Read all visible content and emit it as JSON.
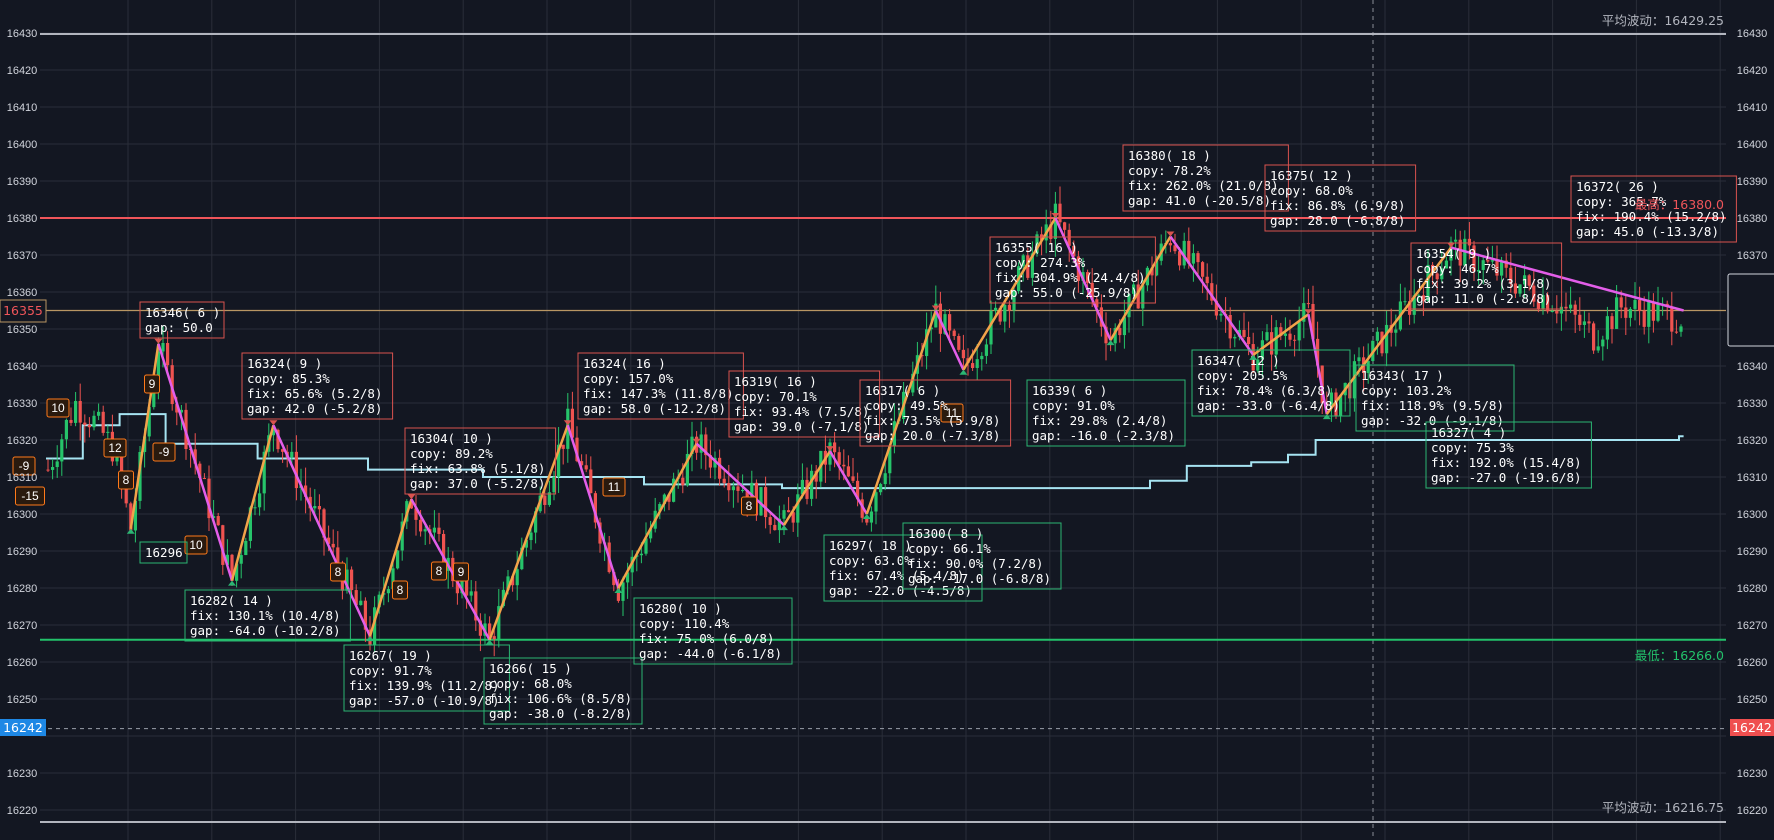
{
  "colors": {
    "background": "#131722",
    "grid": "#2a2e39",
    "up": "#26c46a",
    "down": "#ef5350",
    "swing_up": "#f2a34a",
    "swing_down": "#e35ee9",
    "avg_line": "#a6e4f2",
    "resistance": "#f0555a",
    "support": "#23c26b",
    "neutral": "#b89663",
    "band": "#b2b5be",
    "current_price": "#1e88e5",
    "box_high": "#d9534f",
    "box_low": "#2bb673",
    "badge": "#ff7a1a"
  },
  "axis": {
    "y_ticks": [
      16220,
      16230,
      16240,
      16250,
      16260,
      16270,
      16280,
      16290,
      16300,
      16310,
      16320,
      16330,
      16340,
      16350,
      16360,
      16370,
      16380,
      16390,
      16400,
      16410,
      16420,
      16430
    ],
    "y_range": [
      16216.75,
      16429.25
    ]
  },
  "levels": {
    "avg_high_label": "平均波动：16429.25",
    "avg_low_label": "平均波动：16216.75",
    "low_label": "最低：16266.0",
    "high_label": "最高：16380.0",
    "left_tag": "16355",
    "current_left": "16242",
    "current_right": "16242"
  },
  "chart_data": {
    "type": "candlestick",
    "title": "",
    "ylim": [
      16216.75,
      16429.25
    ],
    "avg_wave_high": 16429.25,
    "avg_wave_low": 16216.75,
    "highest": 16380.0,
    "lowest": 16266.0,
    "reference_level": 16355,
    "current_price": 16242,
    "swing_points": [
      {
        "price": 16296,
        "type": "low",
        "lines": [
          "16296"
        ]
      },
      {
        "price": 16346,
        "type": "high",
        "lines": [
          "16346( 6 )",
          "gap:  50.0"
        ]
      },
      {
        "price": 16282,
        "type": "low",
        "lines": [
          "16282( 14 )",
          "fix:  130.1% (10.4/8)",
          "gap:  -64.0 (-10.2/8)"
        ]
      },
      {
        "price": 16324,
        "type": "high",
        "lines": [
          "16324( 9 )",
          "copy: 85.3%",
          "fix:  65.6% (5.2/8)",
          "gap:  42.0 (-5.2/8)"
        ]
      },
      {
        "price": 16267,
        "type": "low",
        "lines": [
          "16267( 19 )",
          "copy: 91.7%",
          "fix:  139.9% (11.2/8)",
          "gap:  -57.0 (-10.9/8)"
        ]
      },
      {
        "price": 16304,
        "type": "high",
        "lines": [
          "16304( 10 )",
          "copy: 89.2%",
          "fix:  63.8% (5.1/8)",
          "gap:  37.0 (-5.2/8)"
        ]
      },
      {
        "price": 16266,
        "type": "low",
        "lines": [
          "16266( 15 )",
          "copy: 68.0%",
          "fix:  106.6% (8.5/8)",
          "gap:  -38.0 (-8.2/8)"
        ]
      },
      {
        "price": 16324,
        "type": "high",
        "lines": [
          "16324( 16 )",
          "copy: 157.0%",
          "fix:  147.3% (11.8/8)",
          "gap:  58.0 (-12.2/8)"
        ]
      },
      {
        "price": 16280,
        "type": "low",
        "lines": [
          "16280( 10 )",
          "copy: 110.4%",
          "fix:  75.0% (6.0/8)",
          "gap:  -44.0 (-6.1/8)"
        ]
      },
      {
        "price": 16319,
        "type": "high",
        "lines": [
          "16319( 16 )",
          "copy: 70.1%",
          "fix:  93.4% (7.5/8)",
          "gap:  39.0 (-7.1/8)"
        ]
      },
      {
        "price": 16297,
        "type": "low",
        "lines": [
          "16297( 18 )",
          "copy: 63.0%",
          "fix:  67.4% (5.4/8)",
          "gap:  -22.0 (-4.5/8)"
        ]
      },
      {
        "price": 16317,
        "type": "high",
        "lines": [
          "16317( 6 )",
          "copy: 49.5%",
          "fix:  73.5% (5.9/8)",
          "gap:  20.0 (-7.3/8)"
        ]
      },
      {
        "price": 16300,
        "type": "low",
        "lines": [
          "16300( 8 )",
          "copy: 66.1%",
          "fix:  90.0% (7.2/8)",
          "gap:  -17.0 (-6.8/8)"
        ]
      },
      {
        "price": 16355,
        "type": "high",
        "lines": [
          "16355( 16 )",
          "copy: 274.3%",
          "fix:  304.9% (24.4/8)",
          "gap:  55.0 (-25.9/8)"
        ]
      },
      {
        "price": 16339,
        "type": "low",
        "lines": [
          "16339( 6 )",
          "copy: 91.0%",
          "fix:  29.8% (2.4/8)",
          "gap:  -16.0 (-2.3/8)"
        ]
      },
      {
        "price": 16380,
        "type": "high",
        "lines": [
          "16380( 18 )",
          "copy: 78.2%",
          "fix:  262.0% (21.0/8)",
          "gap:  41.0 (-20.5/8)"
        ]
      },
      {
        "price": 16347,
        "type": "low",
        "lines": [
          "16347( 12 )",
          "copy: 205.5%",
          "fix:  78.4% (6.3/8)",
          "gap:  -33.0 (-6.4/8)"
        ]
      },
      {
        "price": 16375,
        "type": "high",
        "lines": [
          "16375( 12 )",
          "copy: 68.0%",
          "fix:  86.8% (6.9/8)",
          "gap:  28.0 (-6.8/8)"
        ]
      },
      {
        "price": 16343,
        "type": "low",
        "lines": [
          "16343( 17 )",
          "copy: 103.2%",
          "fix:  118.9% (9.5/8)",
          "gap:  -32.0 (-9.1/8)"
        ]
      },
      {
        "price": 16354,
        "type": "high",
        "lines": [
          "16354( 9 )",
          "copy: 46.7%",
          "fix:  39.2% (3.1/8)",
          "gap:  11.0 (-2.8/8)"
        ]
      },
      {
        "price": 16327,
        "type": "low",
        "lines": [
          "16327( 4 )",
          "copy: 75.3%",
          "fix:  192.0% (15.4/8)",
          "gap:  -27.0 (-19.6/8)"
        ]
      },
      {
        "price": 16372,
        "type": "high",
        "lines": [
          "16372( 26 )",
          "copy: 365.7%",
          "fix:  190.4% (15.2/8)",
          "gap:  45.0 (-13.3/8)"
        ]
      }
    ],
    "badges": [
      "-9",
      "-15",
      "10",
      "12",
      "8",
      "9",
      "-9",
      "10",
      "8",
      "8",
      "9",
      "8",
      "11",
      "8",
      "11"
    ],
    "avg_line": [
      {
        "i": 0,
        "v": 16315
      },
      {
        "i": 8,
        "v": 16324
      },
      {
        "i": 16,
        "v": 16327
      },
      {
        "i": 26,
        "v": 16319
      },
      {
        "i": 46,
        "v": 16315
      },
      {
        "i": 70,
        "v": 16312
      },
      {
        "i": 95,
        "v": 16310
      },
      {
        "i": 130,
        "v": 16308
      },
      {
        "i": 160,
        "v": 16307
      },
      {
        "i": 200,
        "v": 16307
      },
      {
        "i": 230,
        "v": 16307
      },
      {
        "i": 240,
        "v": 16309
      },
      {
        "i": 248,
        "v": 16313
      },
      {
        "i": 262,
        "v": 16314
      },
      {
        "i": 270,
        "v": 16316
      },
      {
        "i": 276,
        "v": 16320
      },
      {
        "i": 340,
        "v": 16320
      },
      {
        "i": 355,
        "v": 16321
      }
    ]
  }
}
